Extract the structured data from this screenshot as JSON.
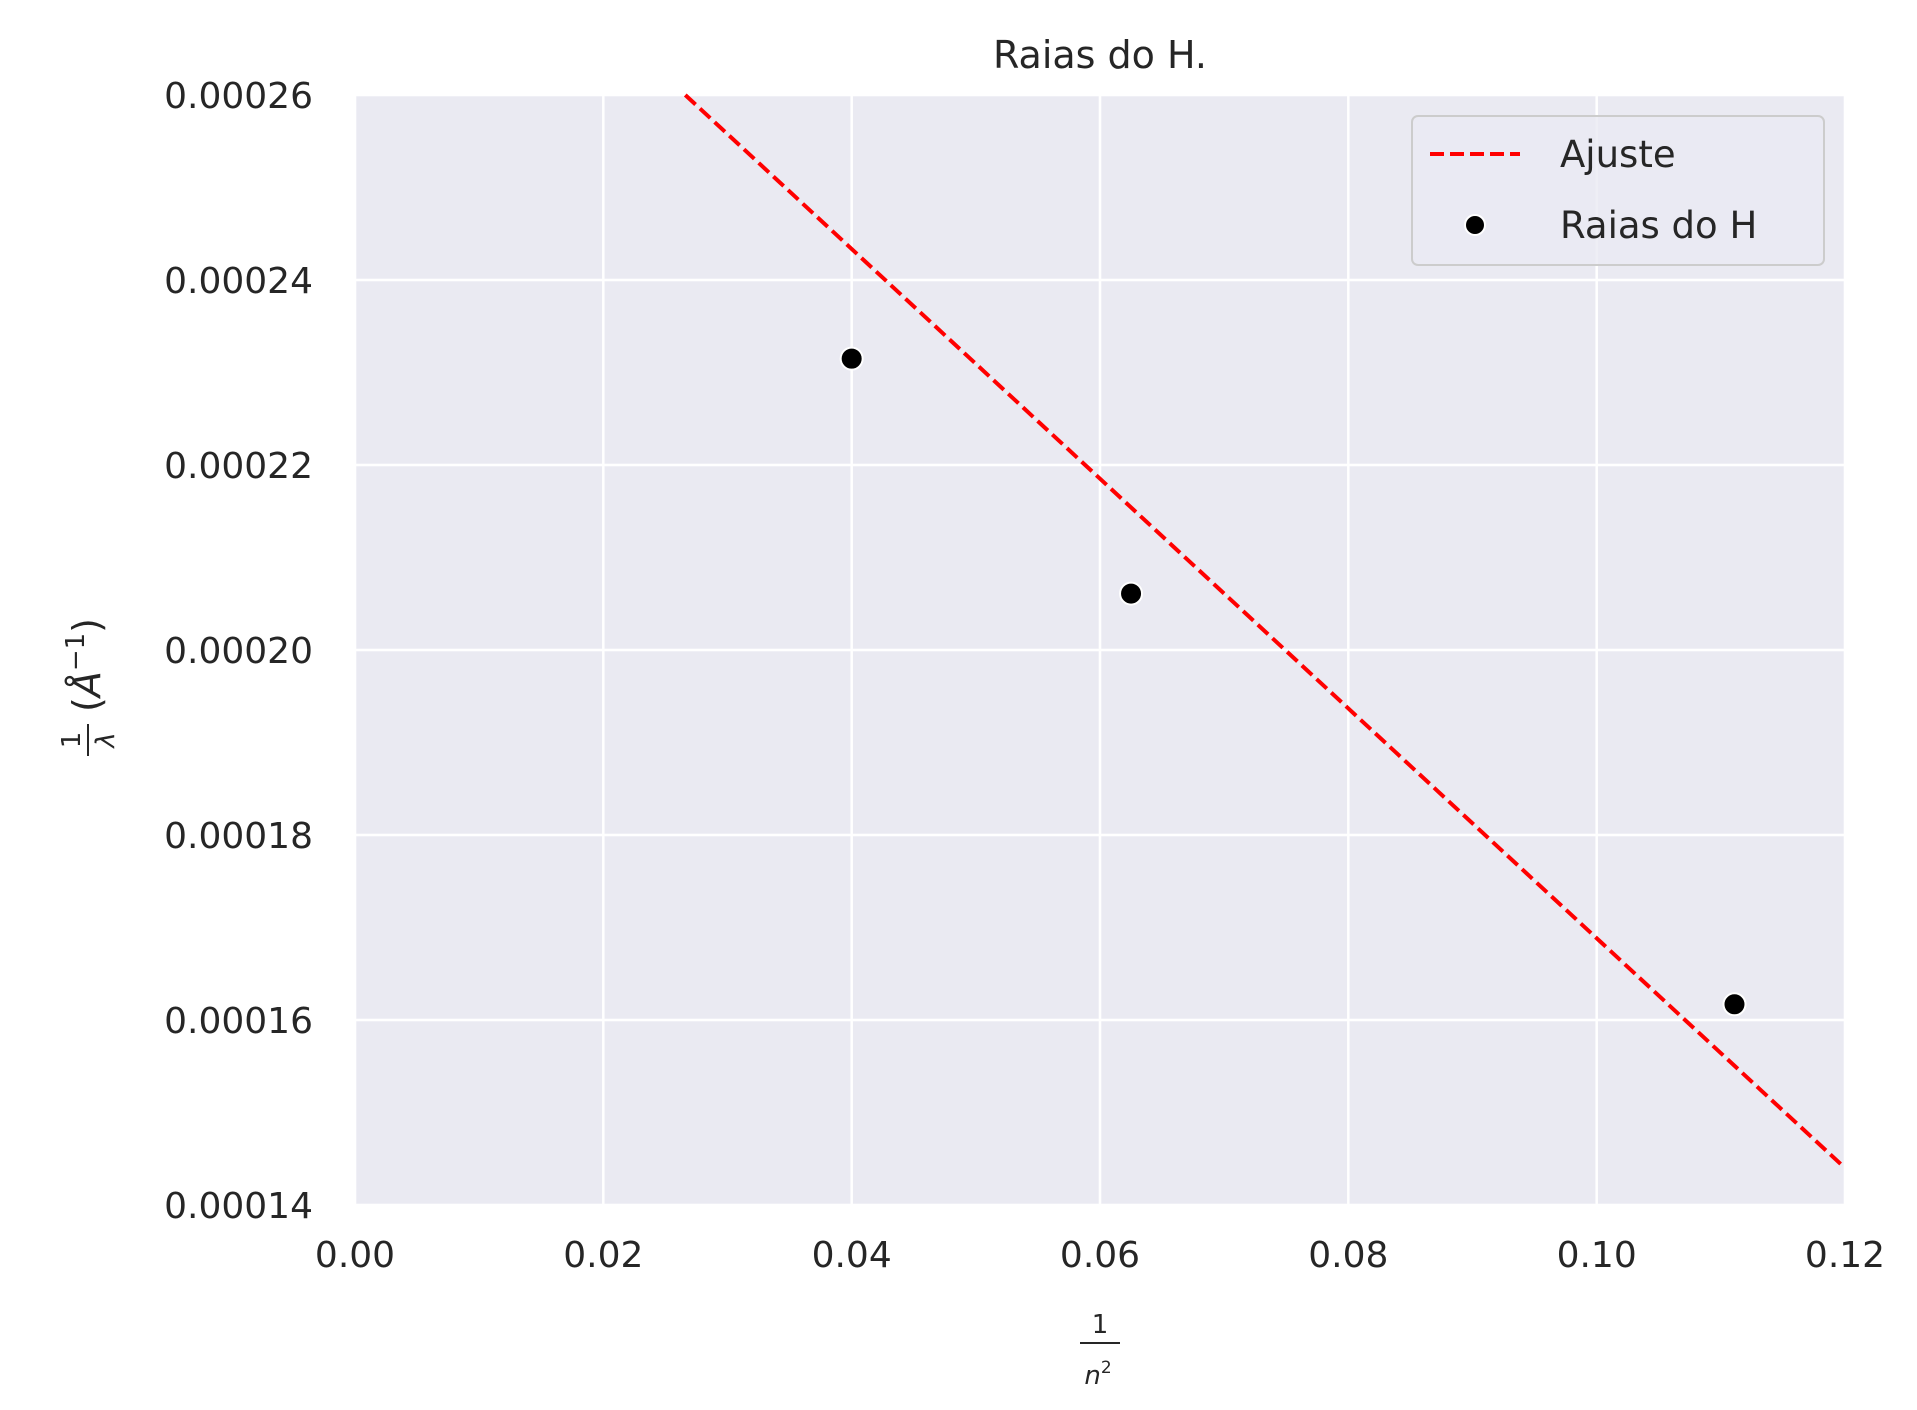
{
  "chart_data": {
    "type": "scatter",
    "title": "Raias do H.",
    "xlabel": "1/n²",
    "ylabel": "1/λ (Å⁻¹)",
    "xlim": [
      0.0,
      0.12
    ],
    "ylim": [
      0.00014,
      0.00026
    ],
    "xticks": [
      "0.00",
      "0.02",
      "0.04",
      "0.06",
      "0.08",
      "0.10",
      "0.12"
    ],
    "yticks": [
      "0.00014",
      "0.00016",
      "0.00018",
      "0.00020",
      "0.00022",
      "0.00024",
      "0.00026"
    ],
    "grid": true,
    "legend_position": "top-right",
    "series": [
      {
        "name": "Ajuste",
        "kind": "line",
        "style": "dashed",
        "color": "#ff0000",
        "x": [
          0.0266,
          0.12
        ],
        "y": [
          0.00026,
          0.000144
        ]
      },
      {
        "name": "Raias do H",
        "kind": "scatter",
        "color": "#000000",
        "x": [
          0.04,
          0.0625,
          0.1111
        ],
        "y": [
          0.0002315,
          0.0002061,
          0.0001617
        ]
      }
    ]
  }
}
